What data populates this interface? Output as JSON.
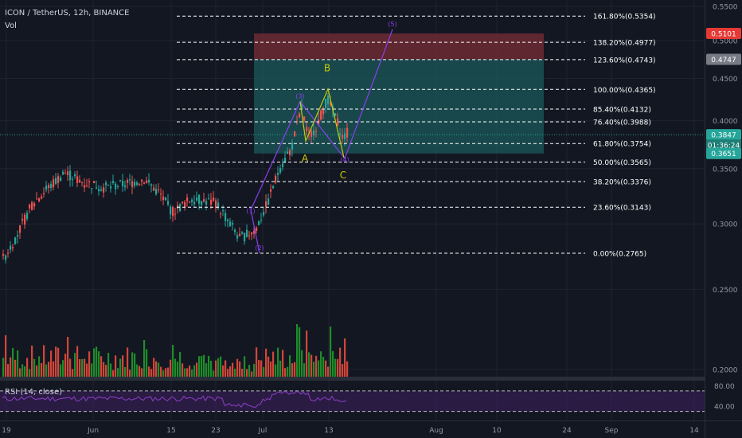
{
  "header": {
    "symbol_line": "ICON / TetherUS, 12h, BINANCE",
    "vol_label": "Vol",
    "rsi_label": "RSI (14, close)"
  },
  "colors": {
    "background": "#131722",
    "up": "#26a69a",
    "down": "#ef5350",
    "vol_up": "#1f9a2a",
    "vol_down": "#e84b3c",
    "wave": "#8a3ff0",
    "abc": "#c9c90c",
    "target_zone": "#7a2d34",
    "stop_zone": "#1b5a59",
    "rsi_line": "#8e3fc9"
  },
  "chart_data": {
    "type": "candlestick",
    "pair": "ICON / TetherUS",
    "timeframe": "12h",
    "exchange": "BINANCE",
    "y_axis": {
      "scale": "log",
      "range": [
        0.196,
        0.56
      ],
      "ticks": [
        "0.5500",
        "0.5000",
        "0.4500",
        "0.4000",
        "0.3500",
        "0.3000",
        "0.2500",
        "0.2000"
      ]
    },
    "x_axis": {
      "ticks": [
        "19",
        "Jun",
        "15",
        "23",
        "Jul",
        "13",
        "Aug",
        "10",
        "24",
        "Sep",
        "14"
      ]
    },
    "fib_levels": [
      {
        "label": "161.80%(0.5354)",
        "value": 0.5354
      },
      {
        "label": "138.20%(0.4977)",
        "value": 0.4977
      },
      {
        "label": "123.60%(0.4743)",
        "value": 0.4743
      },
      {
        "label": "100.00%(0.4365)",
        "value": 0.4365
      },
      {
        "label": "85.40%(0.4132)",
        "value": 0.4132
      },
      {
        "label": "76.40%(0.3988)",
        "value": 0.3988
      },
      {
        "label": "61.80%(0.3754)",
        "value": 0.3754
      },
      {
        "label": "50.00%(0.3565)",
        "value": 0.3565
      },
      {
        "label": "38.20%(0.3376)",
        "value": 0.3376
      },
      {
        "label": "23.60%(0.3143)",
        "value": 0.3143
      },
      {
        "label": "0.00%(0.2765)",
        "value": 0.2765
      }
    ],
    "price_labels": [
      {
        "text": "0.5101",
        "value": 0.5101,
        "color": "#e53935",
        "text_color": "#ffffff"
      },
      {
        "text": "0.4747",
        "value": 0.4747,
        "color": "#787b86",
        "text_color": "#ffffff"
      },
      {
        "text": "0.3847",
        "value": 0.3847,
        "color": "#26a69a",
        "text_color": "#ffffff"
      },
      {
        "text": "01:36:24",
        "value": 0.3738,
        "color": "#1e7d74",
        "text_color": "#ffffff"
      },
      {
        "text": "0.3651",
        "value": 0.3651,
        "color": "#26a69a",
        "text_color": "#ffffff"
      }
    ],
    "position_tool": {
      "entry": 0.3651,
      "target": 0.5101,
      "stop_level": 0.4747,
      "low_edge": 0.3651
    },
    "current_price": 0.3847,
    "elliott_waves": [
      {
        "label": "(2)",
        "value": 0.2765
      },
      {
        "label": "(1)",
        "value": 0.312
      },
      {
        "label": "(3)",
        "value": 0.422
      },
      {
        "label": "(4)",
        "value": 0.36
      },
      {
        "label": "(5)",
        "value": 0.516
      }
    ],
    "abc_correction": [
      {
        "label": "A",
        "value": 0.378
      },
      {
        "label": "B",
        "value": 0.437
      },
      {
        "label": "C",
        "value": 0.361
      }
    ],
    "rsi": {
      "period": 14,
      "source": "close",
      "ticks": [
        "80.00",
        "40.00"
      ],
      "overbought": 70,
      "oversold": 30
    }
  }
}
